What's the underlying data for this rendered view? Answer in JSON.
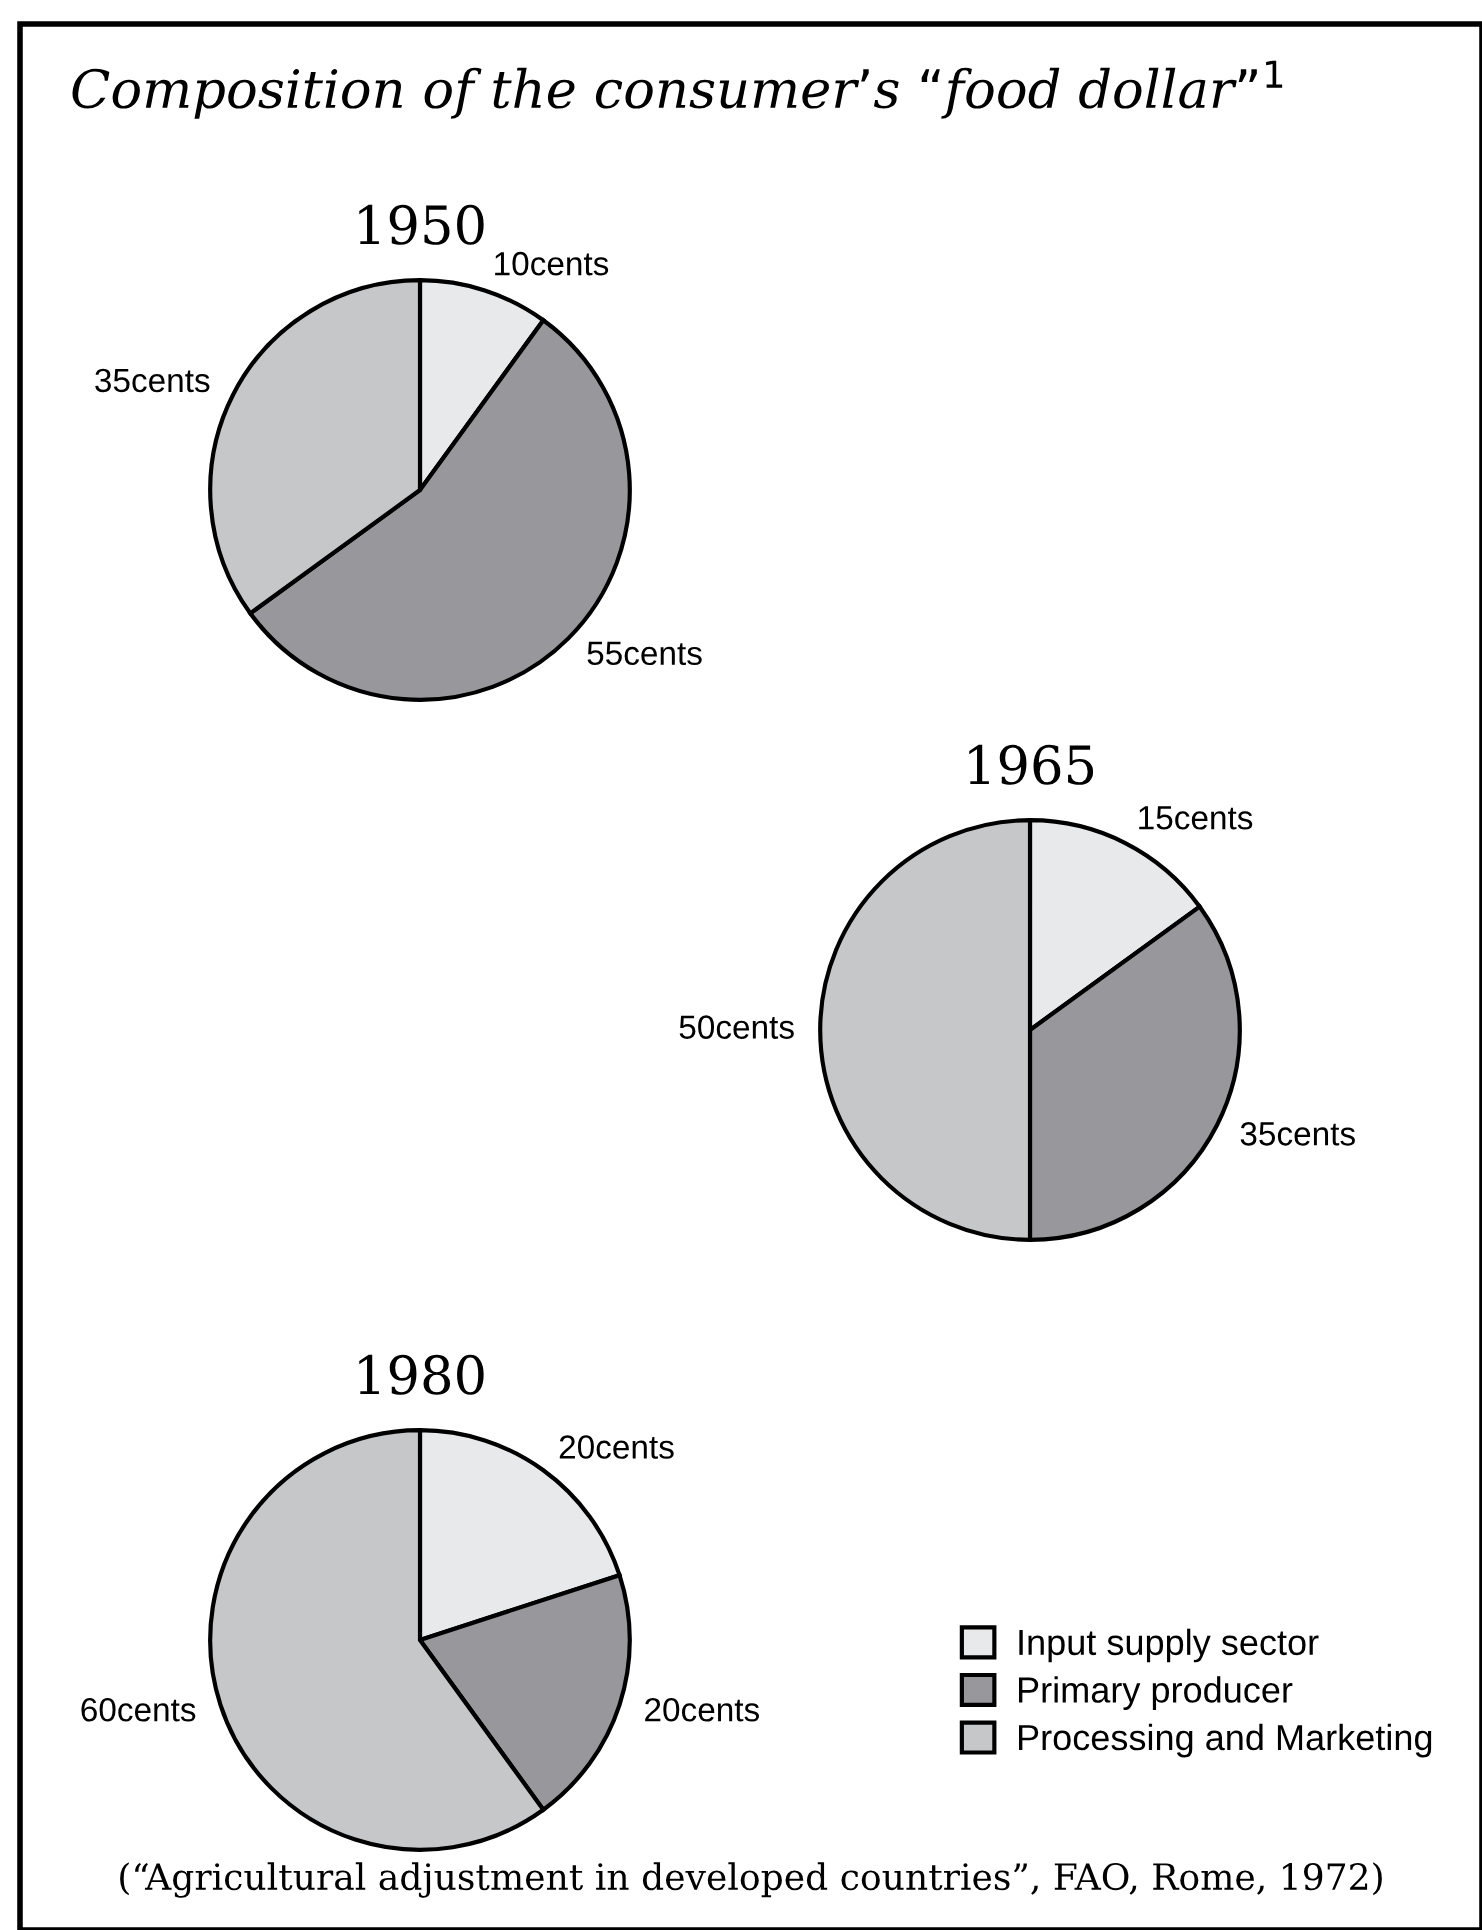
{
  "chart_data": [
    {
      "type": "pie",
      "title": "1950",
      "annotations": [
        "Composition of the consumer’s “food dollar”$^{1}$"
      ],
      "categories": [
        null,
        null,
        null
      ],
      "values": [
        10,
        55,
        35
      ],
      "value_labels": [
        "10cents",
        "55cents",
        "35cents"
      ],
      "colors": [
        "#e8e9eb",
        "#98979c",
        "#c6c7c9"
      ],
      "legend": false
    },
    {
      "type": "pie",
      "title": "1965",
      "categories": [
        null,
        null,
        null
      ],
      "values": [
        15,
        35,
        50
      ],
      "value_labels": [
        "15cents",
        "35cents",
        "50cents"
      ],
      "colors": [
        "#e8e9eb",
        "#98979c",
        "#c6c7c9"
      ],
      "legend": false
    },
    {
      "type": "pie",
      "title": "1980",
      "annotations": [
        "(“Agricultural adjustment in developed countries”, FAO, Rome, 1972)"
      ],
      "categories": [
        "Input supply sector",
        "Primary producer",
        "Processing and Marketing"
      ],
      "values": [
        20,
        20,
        60
      ],
      "value_labels": [
        "20cents",
        "20cents",
        "60cents"
      ],
      "colors": [
        "#e8e9eb",
        "#98979c",
        "#c6c7c9"
      ],
      "legend": "bottom right"
    }
  ]
}
